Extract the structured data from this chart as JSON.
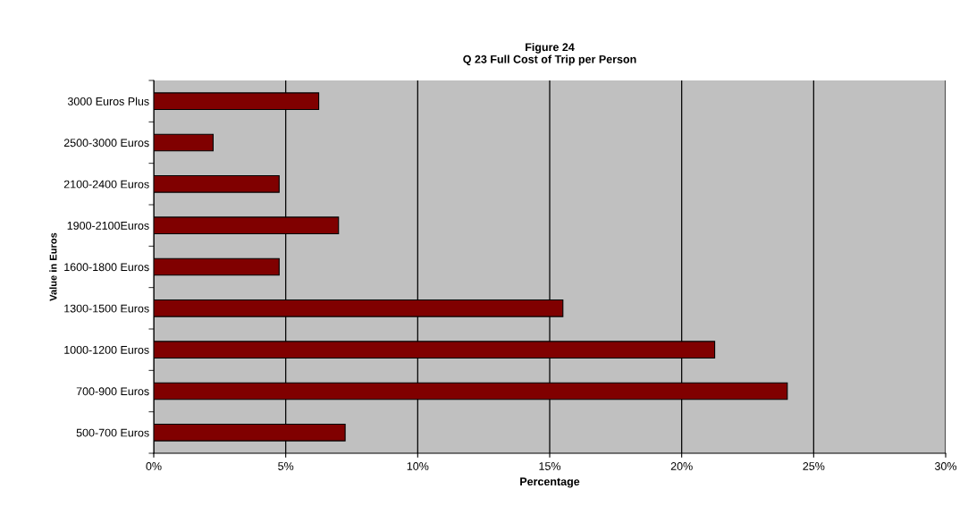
{
  "chart_data": {
    "type": "bar",
    "orientation": "horizontal",
    "title": "Figure 24\nQ 23 Full Cost of Trip per Person",
    "xlabel": "Percentage",
    "ylabel": "Value in Euros",
    "categories": [
      "3000 Euros Plus",
      "2500-3000 Euros",
      "2100-2400 Euros",
      "1900-2100Euros",
      "1600-1800 Euros",
      "1300-1500 Euros",
      "1000-1200 Euros",
      "700-900 Euros",
      "500-700 Euros"
    ],
    "values": [
      6.25,
      2.25,
      4.75,
      7.0,
      4.75,
      15.5,
      21.25,
      24.0,
      7.25
    ],
    "color": "#800000",
    "xlim": [
      0,
      30
    ],
    "xticks": [
      {
        "value": 0,
        "label": "0%"
      },
      {
        "value": 5,
        "label": "5%"
      },
      {
        "value": 10,
        "label": "10%"
      },
      {
        "value": 15,
        "label": "15%"
      },
      {
        "value": 20,
        "label": "20%"
      },
      {
        "value": 25,
        "label": "25%"
      },
      {
        "value": 30,
        "label": "30%"
      }
    ],
    "grid": "x",
    "legend": false
  }
}
